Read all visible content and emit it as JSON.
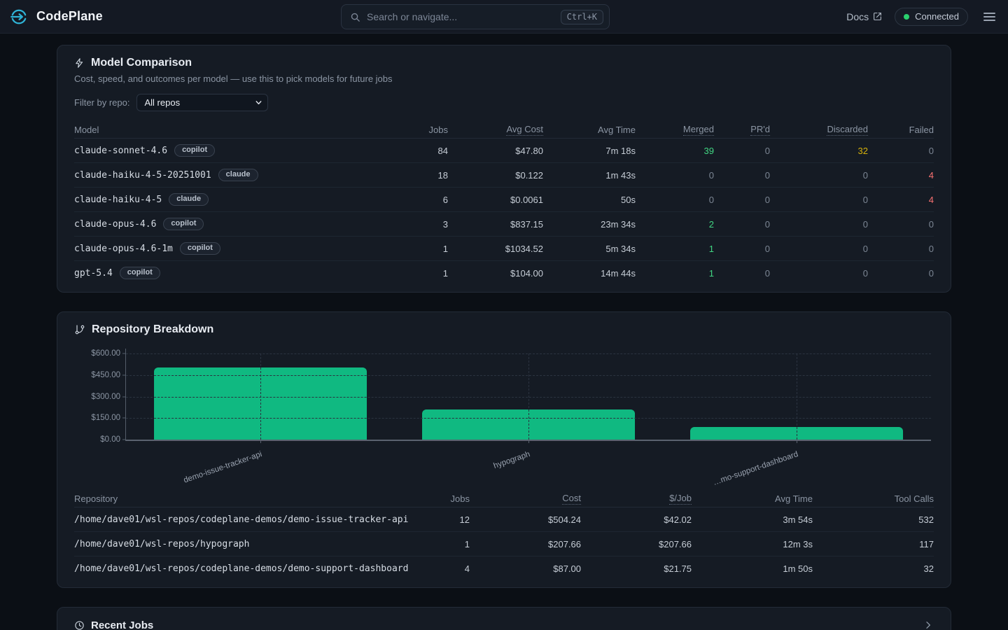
{
  "nav": {
    "brand": "CodePlane",
    "search_placeholder": "Search or navigate...",
    "search_shortcut": "Ctrl+K",
    "docs_label": "Docs",
    "connected_label": "Connected"
  },
  "colors": {
    "accent_cyan": "#2fb3d6",
    "bar_green": "#10b981",
    "merged_green": "#41d783",
    "discarded_yellow": "#d6b20b",
    "failed_red": "#f87171",
    "connected_dot": "#2ad06e"
  },
  "model_comparison": {
    "title": "Model Comparison",
    "subtitle": "Cost, speed, and outcomes per model — use this to pick models for future jobs",
    "filter_label": "Filter by repo:",
    "filter_value": "All repos",
    "columns": [
      {
        "label": "Model",
        "dotted": false
      },
      {
        "label": "Jobs",
        "dotted": false
      },
      {
        "label": "Avg Cost",
        "dotted": true
      },
      {
        "label": "Avg Time",
        "dotted": false
      },
      {
        "label": "Merged",
        "dotted": true
      },
      {
        "label": "PR'd",
        "dotted": true
      },
      {
        "label": "Discarded",
        "dotted": true
      },
      {
        "label": "Failed",
        "dotted": false
      }
    ],
    "rows": [
      {
        "model": "claude-sonnet-4.6",
        "badge": "copilot",
        "jobs": "84",
        "avg_cost": "$47.80",
        "avg_time": "7m 18s",
        "merged": "39",
        "prd": "0",
        "discarded": "32",
        "failed": "0"
      },
      {
        "model": "claude-haiku-4-5-20251001",
        "badge": "claude",
        "jobs": "18",
        "avg_cost": "$0.122",
        "avg_time": "1m 43s",
        "merged": "0",
        "prd": "0",
        "discarded": "0",
        "failed": "4"
      },
      {
        "model": "claude-haiku-4-5",
        "badge": "claude",
        "jobs": "6",
        "avg_cost": "$0.0061",
        "avg_time": "50s",
        "merged": "0",
        "prd": "0",
        "discarded": "0",
        "failed": "4"
      },
      {
        "model": "claude-opus-4.6",
        "badge": "copilot",
        "jobs": "3",
        "avg_cost": "$837.15",
        "avg_time": "23m 34s",
        "merged": "2",
        "prd": "0",
        "discarded": "0",
        "failed": "0"
      },
      {
        "model": "claude-opus-4.6-1m",
        "badge": "copilot",
        "jobs": "1",
        "avg_cost": "$1034.52",
        "avg_time": "5m 34s",
        "merged": "1",
        "prd": "0",
        "discarded": "0",
        "failed": "0"
      },
      {
        "model": "gpt-5.4",
        "badge": "copilot",
        "jobs": "1",
        "avg_cost": "$104.00",
        "avg_time": "14m 44s",
        "merged": "1",
        "prd": "0",
        "discarded": "0",
        "failed": "0"
      }
    ]
  },
  "repository_breakdown": {
    "title": "Repository Breakdown",
    "chart_data": {
      "type": "bar",
      "categories": [
        "demo-issue-tracker-api",
        "hypograph",
        "…mo-support-dashboard"
      ],
      "values": [
        504.24,
        207.66,
        87.0
      ],
      "title": "Repository Breakdown",
      "ylim": [
        0,
        600
      ],
      "yticks": [
        600,
        450,
        300,
        150,
        0
      ],
      "ytick_labels": [
        "$600.00",
        "$450.00",
        "$300.00",
        "$150.00",
        "$0.00"
      ],
      "grid": "dashed",
      "bar_color": "#10b981",
      "legend": "none"
    },
    "columns": [
      {
        "label": "Repository",
        "dotted": false
      },
      {
        "label": "Jobs",
        "dotted": false
      },
      {
        "label": "Cost",
        "dotted": true
      },
      {
        "label": "$/Job",
        "dotted": true
      },
      {
        "label": "Avg Time",
        "dotted": false
      },
      {
        "label": "Tool Calls",
        "dotted": false
      }
    ],
    "rows": [
      {
        "repository": "/home/dave01/wsl-repos/codeplane-demos/demo-issue-tracker-api",
        "jobs": "12",
        "cost": "$504.24",
        "per_job": "$42.02",
        "avg_time": "3m 54s",
        "tool_calls": "532"
      },
      {
        "repository": "/home/dave01/wsl-repos/hypograph",
        "jobs": "1",
        "cost": "$207.66",
        "per_job": "$207.66",
        "avg_time": "12m 3s",
        "tool_calls": "117"
      },
      {
        "repository": "/home/dave01/wsl-repos/codeplane-demos/demo-support-dashboard",
        "jobs": "4",
        "cost": "$87.00",
        "per_job": "$21.75",
        "avg_time": "1m 50s",
        "tool_calls": "32"
      }
    ]
  },
  "recent_jobs": {
    "title": "Recent Jobs"
  }
}
